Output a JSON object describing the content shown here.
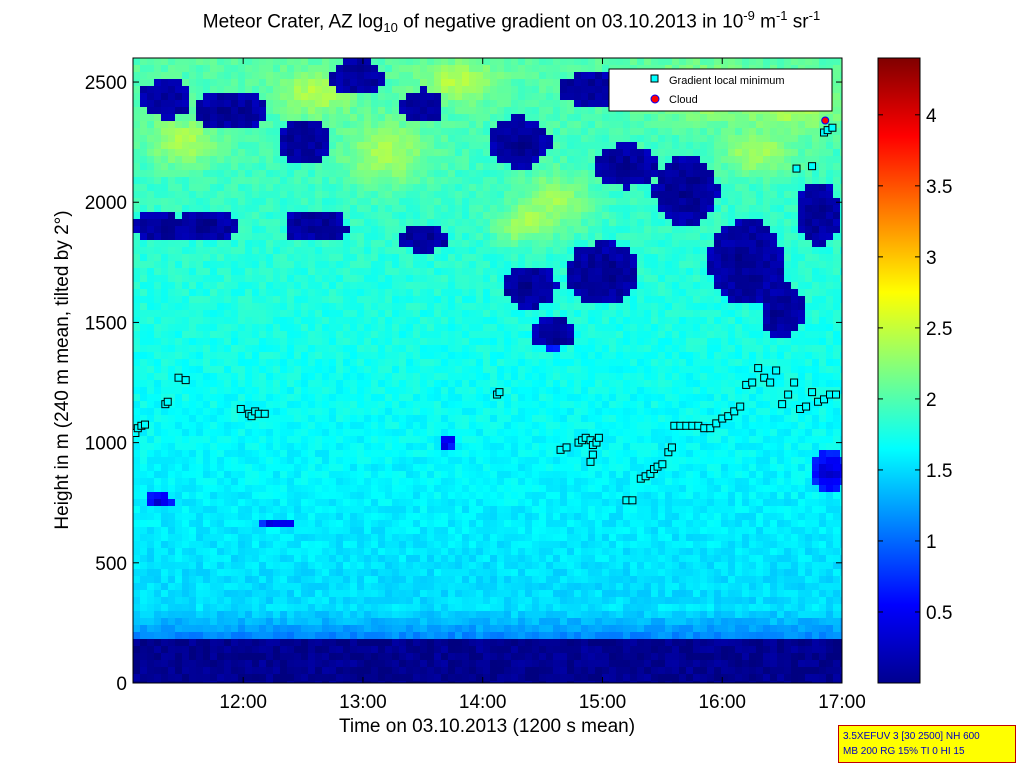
{
  "chart_data": {
    "type": "heatmap",
    "title": "Meteor Crater, AZ log",
    "title_sub": "10",
    "title_rest": " of negative gradient on 03.10.2013 in 10",
    "title_exp1": "-9",
    "title_mid": " m",
    "title_exp2": "-1",
    "title_mid2": " sr",
    "title_exp3": "-1",
    "xlabel": "Time on 03.10.2013 (1200 s mean)",
    "ylabel": "Height in m (240 m mean, tilted by 2°)",
    "xlim": [
      11.08,
      17.0
    ],
    "ylim": [
      0,
      2600
    ],
    "xticks": [
      12,
      13,
      14,
      15,
      16,
      17
    ],
    "xtick_labels": [
      "12:00",
      "13:00",
      "14:00",
      "15:00",
      "16:00",
      "17:00"
    ],
    "yticks": [
      0,
      500,
      1000,
      1500,
      2000,
      2500
    ],
    "ytick_labels": [
      "0",
      "500",
      "1000",
      "1500",
      "2000",
      "2500"
    ],
    "colorbar": {
      "range": [
        0,
        4.4
      ],
      "ticks": [
        0.5,
        1,
        1.5,
        2,
        2.5,
        3,
        3.5,
        4
      ],
      "tick_labels": [
        "0.5",
        "1",
        "1.5",
        "2",
        "2.5",
        "3",
        "3.5",
        "4"
      ],
      "colormap": "jet"
    },
    "legend": {
      "position": "top-right",
      "entries": [
        {
          "label": "Gradient local minimum",
          "marker": "square",
          "color": "#00ffff"
        },
        {
          "label": "Cloud",
          "marker": "circle",
          "color": "#ff0000"
        }
      ]
    },
    "series": [
      {
        "name": "Gradient local minimum",
        "points": [
          [
            11.1,
            1040
          ],
          [
            11.12,
            1060
          ],
          [
            11.15,
            1070
          ],
          [
            11.18,
            1075
          ],
          [
            11.35,
            1160
          ],
          [
            11.37,
            1170
          ],
          [
            11.46,
            1270
          ],
          [
            11.52,
            1260
          ],
          [
            11.98,
            1140
          ],
          [
            12.05,
            1120
          ],
          [
            12.07,
            1110
          ],
          [
            12.1,
            1130
          ],
          [
            12.13,
            1120
          ],
          [
            12.18,
            1120
          ],
          [
            14.12,
            1200
          ],
          [
            14.14,
            1210
          ],
          [
            14.65,
            970
          ],
          [
            14.7,
            980
          ],
          [
            14.8,
            1000
          ],
          [
            14.83,
            1010
          ],
          [
            14.86,
            1020
          ],
          [
            14.9,
            1010
          ],
          [
            14.92,
            990
          ],
          [
            14.95,
            1000
          ],
          [
            14.97,
            1020
          ],
          [
            14.92,
            950
          ],
          [
            14.9,
            920
          ],
          [
            15.2,
            760
          ],
          [
            15.25,
            760
          ],
          [
            15.32,
            850
          ],
          [
            15.36,
            860
          ],
          [
            15.4,
            870
          ],
          [
            15.43,
            890
          ],
          [
            15.46,
            900
          ],
          [
            15.5,
            910
          ],
          [
            15.55,
            960
          ],
          [
            15.58,
            980
          ],
          [
            15.6,
            1070
          ],
          [
            15.65,
            1070
          ],
          [
            15.7,
            1070
          ],
          [
            15.75,
            1070
          ],
          [
            15.8,
            1070
          ],
          [
            15.85,
            1060
          ],
          [
            15.9,
            1060
          ],
          [
            15.95,
            1080
          ],
          [
            16.0,
            1100
          ],
          [
            16.05,
            1110
          ],
          [
            16.1,
            1130
          ],
          [
            16.15,
            1150
          ],
          [
            16.2,
            1240
          ],
          [
            16.25,
            1250
          ],
          [
            16.3,
            1310
          ],
          [
            16.35,
            1270
          ],
          [
            16.4,
            1250
          ],
          [
            16.45,
            1300
          ],
          [
            16.5,
            1160
          ],
          [
            16.55,
            1200
          ],
          [
            16.6,
            1250
          ],
          [
            16.65,
            1140
          ],
          [
            16.7,
            1150
          ],
          [
            16.75,
            1210
          ],
          [
            16.8,
            1170
          ],
          [
            16.85,
            1180
          ],
          [
            16.9,
            1200
          ],
          [
            16.95,
            1200
          ],
          [
            16.62,
            2140
          ],
          [
            16.75,
            2150
          ],
          [
            16.85,
            2290
          ],
          [
            16.88,
            2300
          ],
          [
            16.92,
            2310
          ]
        ]
      },
      {
        "name": "Cloud",
        "points": [
          [
            16.86,
            2340
          ]
        ]
      }
    ]
  },
  "infobox": {
    "line1": "3.5XEFUV 3 [30 2500] NH 600",
    "line2": "MB 200 RG 15% TI 0 HI 15"
  }
}
